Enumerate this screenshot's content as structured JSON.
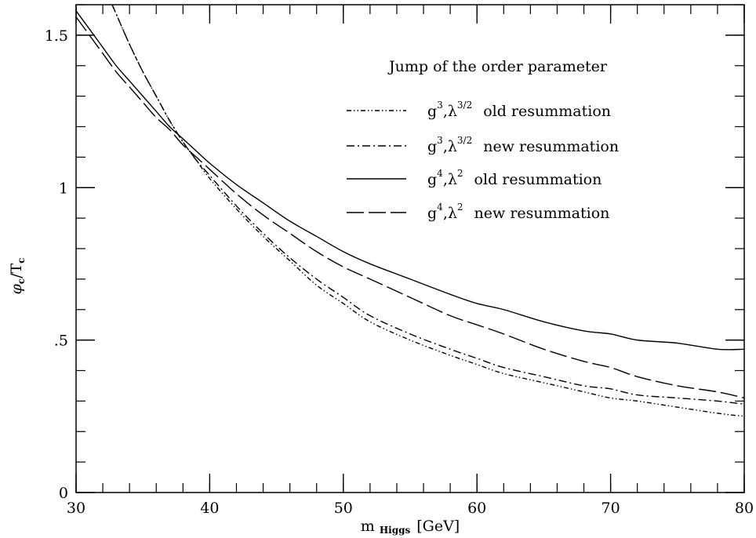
{
  "chart_data": {
    "type": "line",
    "title": "Jump of the order parameter",
    "xlabel": {
      "main": "m",
      "sub": "Higgs",
      "unit": "[GeV]"
    },
    "ylabel": {
      "phi": "φ",
      "phi_sub": "c",
      "slash": "/T",
      "t_sub": "c"
    },
    "xlim": [
      30,
      80
    ],
    "ylim": [
      0,
      1.6
    ],
    "x_ticks": [
      {
        "value": 30,
        "label": "30"
      },
      {
        "value": 40,
        "label": "40"
      },
      {
        "value": 50,
        "label": "50"
      },
      {
        "value": 60,
        "label": "60"
      },
      {
        "value": 70,
        "label": "70"
      },
      {
        "value": 80,
        "label": "80"
      }
    ],
    "y_ticks": [
      {
        "value": 0,
        "label": "0"
      },
      {
        "value": 0.5,
        "label": ".5"
      },
      {
        "value": 1.0,
        "label": "1"
      },
      {
        "value": 1.5,
        "label": "1.5"
      }
    ],
    "x_minor_step": 2,
    "y_minor_step": 0.1,
    "grid": false,
    "legend_position": "top-right",
    "series": [
      {
        "name": "old resummation",
        "label_g": "g",
        "label_gexp": "3",
        "label_lexp": "3/2",
        "dash": "6,3,1.5,3,1.5,3",
        "x": [
          32.7,
          33,
          34,
          35,
          36,
          37,
          38,
          39,
          40,
          42,
          44,
          46,
          48,
          50,
          52,
          55,
          58,
          60,
          62,
          65,
          68,
          70,
          72,
          75,
          78,
          80
        ],
        "y": [
          1.6,
          1.57,
          1.47,
          1.38,
          1.3,
          1.22,
          1.15,
          1.09,
          1.03,
          0.93,
          0.84,
          0.76,
          0.68,
          0.62,
          0.56,
          0.5,
          0.45,
          0.42,
          0.39,
          0.36,
          0.33,
          0.31,
          0.3,
          0.28,
          0.26,
          0.25
        ]
      },
      {
        "name": "new resummation",
        "label_g": "g",
        "label_gexp": "3",
        "label_lexp": "3/2",
        "dash": "10,4,2,4",
        "x": [
          32.7,
          33,
          34,
          35,
          36,
          37,
          38,
          39,
          40,
          42,
          44,
          46,
          48,
          50,
          52,
          55,
          58,
          60,
          62,
          65,
          68,
          70,
          72,
          75,
          78,
          80
        ],
        "y": [
          1.6,
          1.57,
          1.47,
          1.38,
          1.3,
          1.22,
          1.15,
          1.09,
          1.04,
          0.94,
          0.85,
          0.77,
          0.7,
          0.64,
          0.58,
          0.52,
          0.47,
          0.44,
          0.41,
          0.38,
          0.35,
          0.34,
          0.32,
          0.31,
          0.3,
          0.29
        ]
      },
      {
        "name": "old resummation",
        "label_g": "g",
        "label_gexp": "4",
        "label_lexp": "2",
        "dash": "",
        "x": [
          30,
          31,
          32,
          33,
          34,
          35,
          36,
          37,
          38,
          39,
          40,
          42,
          44,
          46,
          48,
          50,
          52,
          55,
          58,
          60,
          62,
          65,
          68,
          70,
          72,
          75,
          78,
          80
        ],
        "y": [
          1.58,
          1.52,
          1.46,
          1.4,
          1.35,
          1.3,
          1.25,
          1.2,
          1.16,
          1.12,
          1.08,
          1.01,
          0.95,
          0.89,
          0.84,
          0.79,
          0.75,
          0.7,
          0.65,
          0.62,
          0.6,
          0.56,
          0.53,
          0.52,
          0.5,
          0.49,
          0.47,
          0.47
        ]
      },
      {
        "name": "new resummation",
        "label_g": "g",
        "label_gexp": "4",
        "label_lexp": "2",
        "dash": "22,6",
        "x": [
          30,
          31,
          32,
          33,
          34,
          35,
          36,
          37,
          38,
          39,
          40,
          42,
          44,
          46,
          48,
          50,
          52,
          55,
          58,
          60,
          62,
          65,
          68,
          70,
          72,
          75,
          78,
          80
        ],
        "y": [
          1.56,
          1.5,
          1.44,
          1.38,
          1.33,
          1.28,
          1.23,
          1.19,
          1.14,
          1.1,
          1.06,
          0.98,
          0.91,
          0.85,
          0.79,
          0.74,
          0.7,
          0.64,
          0.58,
          0.55,
          0.52,
          0.47,
          0.43,
          0.41,
          0.38,
          0.35,
          0.33,
          0.31
        ]
      }
    ]
  }
}
